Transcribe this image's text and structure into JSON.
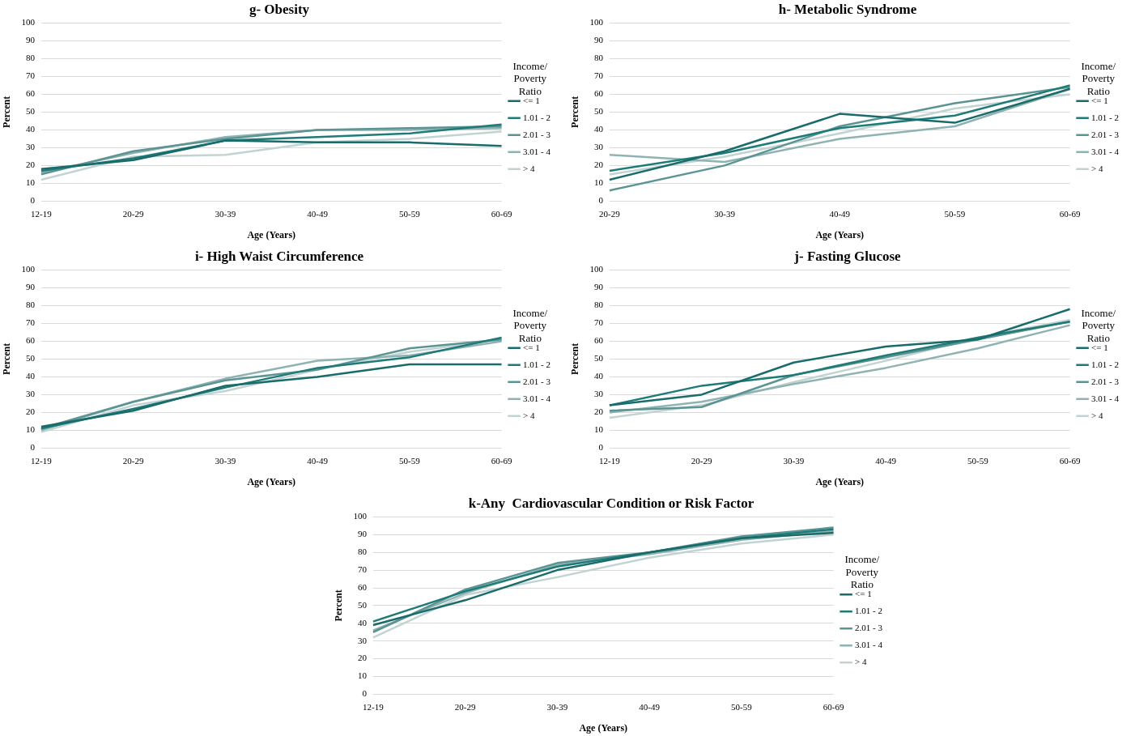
{
  "chart_data": [
    {
      "type": "line",
      "title": "g- Obesity",
      "xlabel": "Age (Years)",
      "ylabel": "Percent",
      "legend_title": "Income/ Poverty Ratio",
      "categories": [
        "12-19",
        "20-29",
        "30-39",
        "40-49",
        "50-59",
        "60-69"
      ],
      "ylim": [
        0,
        100
      ],
      "yticks": [
        0,
        10,
        20,
        30,
        40,
        50,
        60,
        70,
        80,
        90,
        100
      ],
      "grid": "y",
      "legend": "right",
      "series": [
        {
          "name": "<= 1",
          "color": "#1a6b6b",
          "values": [
            18,
            23,
            34,
            33,
            33,
            31
          ]
        },
        {
          "name": "1.01 - 2",
          "color": "#1e7b78",
          "values": [
            17,
            24,
            34,
            36,
            38,
            43
          ]
        },
        {
          "name": "2.01 - 3",
          "color": "#5c9493",
          "values": [
            15,
            28,
            35,
            40,
            41,
            42
          ]
        },
        {
          "name": "3.01 - 4",
          "color": "#8fb3b2",
          "values": [
            16,
            27,
            36,
            40,
            40,
            41
          ]
        },
        {
          "name": "> 4",
          "color": "#c1d3d2",
          "values": [
            12,
            25,
            26,
            33,
            35,
            39
          ]
        }
      ]
    },
    {
      "type": "line",
      "title": "h- Metabolic Syndrome",
      "xlabel": "Age (Years)",
      "ylabel": "Percent",
      "legend_title": "Income/ Poverty Ratio",
      "categories": [
        "20-29",
        "30-39",
        "40-49",
        "50-59",
        "60-69"
      ],
      "ylim": [
        0,
        100
      ],
      "yticks": [
        0,
        10,
        20,
        30,
        40,
        50,
        60,
        70,
        80,
        90,
        100
      ],
      "grid": "y",
      "legend": "right",
      "series": [
        {
          "name": "<= 1",
          "color": "#1a6b6b",
          "values": [
            12,
            28,
            49,
            44,
            63
          ]
        },
        {
          "name": "1.01 - 2",
          "color": "#1e7b78",
          "values": [
            17,
            27,
            41,
            48,
            65
          ]
        },
        {
          "name": "2.01 - 3",
          "color": "#5c9493",
          "values": [
            6,
            20,
            42,
            55,
            64
          ]
        },
        {
          "name": "3.01 - 4",
          "color": "#8fb3b2",
          "values": [
            26,
            22,
            35,
            42,
            63
          ]
        },
        {
          "name": "> 4",
          "color": "#c1d3d2",
          "values": [
            15,
            25,
            38,
            52,
            60
          ]
        }
      ]
    },
    {
      "type": "line",
      "title": "i- High Waist Circumference",
      "xlabel": "Age (Years)",
      "ylabel": "Percent",
      "legend_title": "Income/ Poverty Ratio",
      "categories": [
        "12-19",
        "20-29",
        "30-39",
        "40-49",
        "50-59",
        "60-69"
      ],
      "ylim": [
        0,
        100
      ],
      "yticks": [
        0,
        10,
        20,
        30,
        40,
        50,
        60,
        70,
        80,
        90,
        100
      ],
      "grid": "y",
      "legend": "right",
      "series": [
        {
          "name": "<= 1",
          "color": "#1a6b6b",
          "values": [
            12,
            21,
            35,
            40,
            47,
            47
          ]
        },
        {
          "name": "1.01 - 2",
          "color": "#1e7b78",
          "values": [
            11,
            22,
            34,
            45,
            51,
            62
          ]
        },
        {
          "name": "2.01 - 3",
          "color": "#5c9493",
          "values": [
            11,
            26,
            38,
            44,
            56,
            61
          ]
        },
        {
          "name": "3.01 - 4",
          "color": "#8fb3b2",
          "values": [
            10,
            26,
            39,
            49,
            52,
            60
          ]
        },
        {
          "name": "> 4",
          "color": "#c1d3d2",
          "values": [
            9,
            24,
            32,
            44,
            54,
            61
          ]
        }
      ]
    },
    {
      "type": "line",
      "title": "j- Fasting Glucose",
      "xlabel": "Age (Years)",
      "ylabel": "Percent",
      "legend_title": "Income/ Poverty Ratio",
      "categories": [
        "12-19",
        "20-29",
        "30-39",
        "40-49",
        "50-59",
        "60-69"
      ],
      "ylim": [
        0,
        100
      ],
      "yticks": [
        0,
        10,
        20,
        30,
        40,
        50,
        60,
        70,
        80,
        90,
        100
      ],
      "grid": "y",
      "legend": "right",
      "series": [
        {
          "name": "<= 1",
          "color": "#1a6b6b",
          "values": [
            24,
            30,
            48,
            57,
            61,
            78
          ]
        },
        {
          "name": "1.01 - 2",
          "color": "#1e7b78",
          "values": [
            24,
            35,
            41,
            52,
            62,
            71
          ]
        },
        {
          "name": "2.01 - 3",
          "color": "#5c9493",
          "values": [
            21,
            23,
            41,
            51,
            61,
            71
          ]
        },
        {
          "name": "3.01 - 4",
          "color": "#8fb3b2",
          "values": [
            20,
            26,
            36,
            45,
            56,
            69
          ]
        },
        {
          "name": "> 4",
          "color": "#c1d3d2",
          "values": [
            17,
            24,
            37,
            49,
            62,
            72
          ]
        }
      ]
    },
    {
      "type": "line",
      "title": "k-Any  Cardiovascular Condition or Risk Factor",
      "xlabel": "Age (Years)",
      "ylabel": "Percent",
      "legend_title": "Income/ Poverty Ratio",
      "categories": [
        "12-19",
        "20-29",
        "30-39",
        "40-49",
        "50-59",
        "60-69"
      ],
      "ylim": [
        0,
        100
      ],
      "yticks": [
        0,
        10,
        20,
        30,
        40,
        50,
        60,
        70,
        80,
        90,
        100
      ],
      "grid": "y",
      "legend": "right",
      "series": [
        {
          "name": "<= 1",
          "color": "#1a6b6b",
          "values": [
            39,
            53,
            70,
            80,
            88,
            91
          ]
        },
        {
          "name": "1.01 - 2",
          "color": "#1e7b78",
          "values": [
            41,
            58,
            72,
            80,
            88,
            93
          ]
        },
        {
          "name": "2.01 - 3",
          "color": "#5c9493",
          "values": [
            35,
            59,
            74,
            80,
            89,
            94
          ]
        },
        {
          "name": "3.01 - 4",
          "color": "#8fb3b2",
          "values": [
            36,
            57,
            73,
            79,
            87,
            92
          ]
        },
        {
          "name": "> 4",
          "color": "#c1d3d2",
          "values": [
            32,
            56,
            66,
            77,
            85,
            90
          ]
        }
      ]
    }
  ]
}
